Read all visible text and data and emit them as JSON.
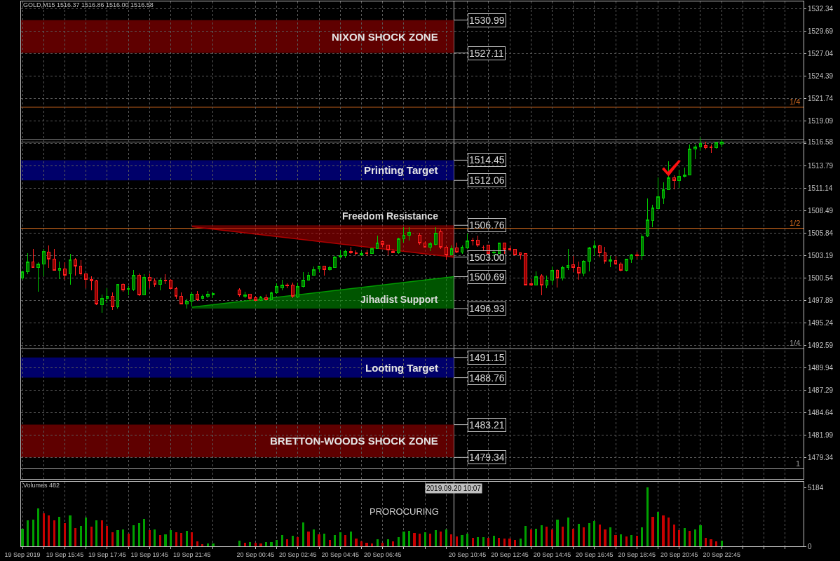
{
  "chart_data": [
    {
      "type": "candlestick",
      "title": "GOLD,M15 1516.37 1516.86 1516.00 1516.58",
      "x": [
        "2019-09-19T13:45",
        "2019-09-19T14:00",
        "2019-09-19T14:15",
        "2019-09-19T14:30",
        "2019-09-19T14:45",
        "2019-09-19T15:00",
        "2019-09-19T15:15",
        "2019-09-19T15:30",
        "2019-09-19T15:45",
        "2019-09-19T16:00",
        "2019-09-19T16:15",
        "2019-09-19T16:30",
        "2019-09-19T16:45",
        "2019-09-19T17:00",
        "2019-09-19T17:15",
        "2019-09-19T17:30",
        "2019-09-19T17:45",
        "2019-09-19T18:00",
        "2019-09-19T18:15",
        "2019-09-19T18:30",
        "2019-09-19T18:45",
        "2019-09-19T19:00",
        "2019-09-19T19:15",
        "2019-09-19T19:30",
        "2019-09-19T19:45",
        "2019-09-19T20:00",
        "2019-09-19T20:15",
        "2019-09-19T20:30",
        "2019-09-19T20:45",
        "2019-09-19T21:00",
        "2019-09-19T21:15",
        "2019-09-19T21:30",
        "2019-09-19T21:45",
        "2019-09-19T22:00",
        "2019-09-19T22:15",
        "2019-09-19T22:30",
        "2019-09-19T22:45",
        "2019-09-20T00:00",
        "2019-09-20T00:15",
        "2019-09-20T00:30",
        "2019-09-20T00:45",
        "2019-09-20T01:00",
        "2019-09-20T01:15",
        "2019-09-20T01:30",
        "2019-09-20T01:45",
        "2019-09-20T02:00",
        "2019-09-20T02:15",
        "2019-09-20T02:30",
        "2019-09-20T02:45",
        "2019-09-20T03:00",
        "2019-09-20T03:15",
        "2019-09-20T03:30",
        "2019-09-20T03:45",
        "2019-09-20T04:00",
        "2019-09-20T04:15",
        "2019-09-20T04:30",
        "2019-09-20T04:45",
        "2019-09-20T05:00",
        "2019-09-20T05:15",
        "2019-09-20T05:30",
        "2019-09-20T05:45",
        "2019-09-20T06:00",
        "2019-09-20T06:15",
        "2019-09-20T06:30",
        "2019-09-20T06:45",
        "2019-09-20T07:00",
        "2019-09-20T07:15",
        "2019-09-20T07:30",
        "2019-09-20T07:45",
        "2019-09-20T08:00",
        "2019-09-20T08:30",
        "2019-09-20T08:45",
        "2019-09-20T09:00",
        "2019-09-20T09:15",
        "2019-09-20T09:30",
        "2019-09-20T09:45",
        "2019-09-20T10:00",
        "2019-09-20T10:15",
        "2019-09-20T10:30",
        "2019-09-20T10:45",
        "2019-09-20T11:00",
        "2019-09-20T11:15",
        "2019-09-20T11:30",
        "2019-09-20T11:45",
        "2019-09-20T12:00",
        "2019-09-20T12:15",
        "2019-09-20T12:30",
        "2019-09-20T12:45",
        "2019-09-20T13:00",
        "2019-09-20T13:15",
        "2019-09-20T13:30",
        "2019-09-20T13:45",
        "2019-09-20T14:00",
        "2019-09-20T14:15",
        "2019-09-20T14:30",
        "2019-09-20T14:45",
        "2019-09-20T15:00",
        "2019-09-20T15:15",
        "2019-09-20T15:30",
        "2019-09-20T15:45",
        "2019-09-20T16:00",
        "2019-09-20T16:15",
        "2019-09-20T16:30",
        "2019-09-20T16:45",
        "2019-09-20T17:00",
        "2019-09-20T17:15",
        "2019-09-20T17:30",
        "2019-09-20T17:45",
        "2019-09-20T18:00",
        "2019-09-20T18:15",
        "2019-09-20T18:30",
        "2019-09-20T18:45",
        "2019-09-20T19:00",
        "2019-09-20T19:15",
        "2019-09-20T19:30",
        "2019-09-20T19:45",
        "2019-09-20T20:00",
        "2019-09-20T20:15",
        "2019-09-20T20:30",
        "2019-09-20T20:45",
        "2019-09-20T21:00",
        "2019-09-20T21:15",
        "2019-09-20T21:30",
        "2019-09-20T21:45",
        "2019-09-20T22:00",
        "2019-09-20T22:15",
        "2019-09-20T22:30",
        "2019-09-20T22:45"
      ],
      "ohlc": [
        [
          1500.5,
          1501.4,
          1500.3,
          1501.3
        ],
        [
          1501.3,
          1503.5,
          1501.0,
          1502.4
        ],
        [
          1502.4,
          1504.0,
          1501.7,
          1501.8
        ],
        [
          1501.8,
          1502.4,
          1498.9,
          1502.2
        ],
        [
          1502.2,
          1504.0,
          1500.7,
          1503.7
        ],
        [
          1503.6,
          1504.4,
          1501.7,
          1502.8
        ],
        [
          1502.8,
          1504.0,
          1501.4,
          1501.4
        ],
        [
          1501.4,
          1502.5,
          1500.4,
          1501.7
        ],
        [
          1501.6,
          1502.4,
          1500.3,
          1500.9
        ],
        [
          1501.0,
          1503.4,
          1499.7,
          1502.7
        ],
        [
          1502.7,
          1502.9,
          1500.8,
          1501.9
        ],
        [
          1501.9,
          1502.6,
          1500.8,
          1501.0
        ],
        [
          1501.0,
          1501.0,
          1499.3,
          1500.4
        ],
        [
          1500.4,
          1500.7,
          1499.1,
          1500.2
        ],
        [
          1500.2,
          1500.3,
          1497.3,
          1497.5
        ],
        [
          1497.4,
          1498.6,
          1496.4,
          1498.1
        ],
        [
          1498.1,
          1499.3,
          1497.6,
          1498.4
        ],
        [
          1498.4,
          1498.8,
          1496.8,
          1497.1
        ],
        [
          1497.1,
          1499.8,
          1496.9,
          1499.8
        ],
        [
          1499.8,
          1499.9,
          1498.9,
          1499.1
        ],
        [
          1499.2,
          1499.6,
          1498.5,
          1499.3
        ],
        [
          1499.2,
          1501.5,
          1499.0,
          1500.9
        ],
        [
          1500.9,
          1501.1,
          1498.4,
          1498.5
        ],
        [
          1498.5,
          1501.0,
          1498.5,
          1500.6
        ],
        [
          1500.6,
          1501.1,
          1499.3,
          1500.2
        ],
        [
          1500.2,
          1500.5,
          1499.5,
          1499.8
        ],
        [
          1499.8,
          1500.5,
          1499.1,
          1500.3
        ],
        [
          1500.3,
          1501.0,
          1499.8,
          1500.2
        ],
        [
          1500.3,
          1500.4,
          1499.2,
          1499.3
        ],
        [
          1499.3,
          1499.5,
          1498.1,
          1498.4
        ],
        [
          1498.4,
          1498.8,
          1497.4,
          1497.5
        ],
        [
          1497.5,
          1498.1,
          1496.9,
          1497.8
        ],
        [
          1497.8,
          1498.9,
          1497.2,
          1498.6
        ],
        [
          1498.6,
          1499.0,
          1497.8,
          1498.0
        ],
        [
          1498.1,
          1498.6,
          1498.0,
          1498.4
        ],
        [
          1498.4,
          1499.0,
          1498.2,
          1498.6
        ],
        [
          1498.5,
          1498.9,
          1498.2,
          1498.7
        ],
        [
          1499.1,
          1499.3,
          1498.3,
          1498.5
        ],
        [
          1498.4,
          1498.9,
          1498.2,
          1498.5
        ],
        [
          1498.6,
          1498.7,
          1497.8,
          1498.1
        ],
        [
          1498.2,
          1498.4,
          1497.8,
          1497.9
        ],
        [
          1497.9,
          1498.4,
          1497.9,
          1498.3
        ],
        [
          1498.2,
          1498.6,
          1497.9,
          1498.0
        ],
        [
          1498.0,
          1498.9,
          1497.9,
          1498.8
        ],
        [
          1498.8,
          1499.9,
          1498.7,
          1499.5
        ],
        [
          1499.4,
          1500.3,
          1499.1,
          1499.7
        ],
        [
          1499.7,
          1499.9,
          1499.3,
          1499.6
        ],
        [
          1499.7,
          1500.0,
          1498.2,
          1498.4
        ],
        [
          1498.3,
          1500.0,
          1498.2,
          1499.5
        ],
        [
          1499.5,
          1501.2,
          1499.4,
          1500.3
        ],
        [
          1500.3,
          1501.2,
          1500.2,
          1500.9
        ],
        [
          1500.9,
          1501.9,
          1500.8,
          1501.5
        ],
        [
          1501.6,
          1502.0,
          1501.2,
          1501.9
        ],
        [
          1501.9,
          1501.9,
          1500.8,
          1501.5
        ],
        [
          1501.5,
          1502.0,
          1501.4,
          1501.8
        ],
        [
          1501.8,
          1503.1,
          1501.7,
          1503.0
        ],
        [
          1503.0,
          1503.8,
          1502.9,
          1503.2
        ],
        [
          1503.2,
          1503.9,
          1502.9,
          1503.7
        ],
        [
          1503.7,
          1504.2,
          1503.4,
          1503.5
        ],
        [
          1503.5,
          1503.8,
          1503.2,
          1503.4
        ],
        [
          1503.3,
          1503.7,
          1503.1,
          1503.4
        ],
        [
          1503.5,
          1503.9,
          1503.1,
          1503.4
        ],
        [
          1503.4,
          1504.1,
          1503.4,
          1504.0
        ],
        [
          1504.0,
          1505.5,
          1504.0,
          1504.7
        ],
        [
          1504.8,
          1505.0,
          1504.2,
          1504.5
        ],
        [
          1504.4,
          1504.5,
          1503.2,
          1503.8
        ],
        [
          1503.7,
          1504.0,
          1503.5,
          1503.5
        ],
        [
          1503.5,
          1505.3,
          1503.4,
          1505.2
        ],
        [
          1505.2,
          1506.5,
          1504.7,
          1505.6
        ],
        [
          1505.6,
          1506.5,
          1505.0,
          1505.9
        ],
        [
          1505.6,
          1505.9,
          1504.5,
          1504.7
        ],
        [
          1504.7,
          1504.9,
          1504.1,
          1504.2
        ],
        [
          1504.2,
          1504.8,
          1503.7,
          1504.6
        ],
        [
          1504.5,
          1506.5,
          1504.4,
          1505.8
        ],
        [
          1506.0,
          1506.3,
          1504.0,
          1504.2
        ],
        [
          1504.2,
          1504.4,
          1502.7,
          1503.3
        ],
        [
          1503.3,
          1504.4,
          1503.2,
          1504.0
        ],
        [
          1504.1,
          1504.7,
          1503.5,
          1503.6
        ],
        [
          1503.6,
          1504.4,
          1503.4,
          1504.2
        ],
        [
          1504.1,
          1505.8,
          1504.0,
          1504.9
        ],
        [
          1505.0,
          1505.3,
          1504.4,
          1504.9
        ],
        [
          1505.0,
          1505.5,
          1504.2,
          1504.4
        ],
        [
          1504.2,
          1504.4,
          1503.7,
          1504.2
        ],
        [
          1504.4,
          1504.4,
          1503.4,
          1503.4
        ],
        [
          1503.5,
          1503.9,
          1503.1,
          1503.6
        ],
        [
          1503.4,
          1504.7,
          1503.4,
          1504.7
        ],
        [
          1504.7,
          1504.7,
          1503.4,
          1503.9
        ],
        [
          1504.0,
          1504.4,
          1503.7,
          1503.8
        ],
        [
          1503.9,
          1504.0,
          1503.3,
          1503.3
        ],
        [
          1503.5,
          1503.5,
          1502.7,
          1503.3
        ],
        [
          1503.4,
          1503.4,
          1499.7,
          1499.7
        ],
        [
          1499.9,
          1500.4,
          1499.6,
          1499.7
        ],
        [
          1499.7,
          1501.3,
          1499.7,
          1500.7
        ],
        [
          1500.8,
          1501.0,
          1498.5,
          1499.7
        ],
        [
          1499.7,
          1500.8,
          1499.3,
          1500.3
        ],
        [
          1500.3,
          1501.9,
          1499.7,
          1501.4
        ],
        [
          1501.4,
          1501.6,
          1499.4,
          1500.5
        ],
        [
          1500.5,
          1502.0,
          1500.2,
          1501.8
        ],
        [
          1501.8,
          1504.0,
          1501.5,
          1502.0
        ],
        [
          1502.1,
          1503.1,
          1501.2,
          1501.8
        ],
        [
          1501.8,
          1502.5,
          1500.3,
          1501.1
        ],
        [
          1501.1,
          1502.6,
          1500.7,
          1502.5
        ],
        [
          1502.5,
          1504.2,
          1501.3,
          1504.1
        ],
        [
          1504.1,
          1505.0,
          1503.1,
          1504.3
        ],
        [
          1504.3,
          1504.5,
          1503.0,
          1503.5
        ],
        [
          1503.5,
          1504.2,
          1502.2,
          1502.5
        ],
        [
          1502.5,
          1503.1,
          1501.8,
          1502.7
        ],
        [
          1502.6,
          1503.1,
          1502.1,
          1502.2
        ],
        [
          1502.2,
          1502.4,
          1501.3,
          1501.4
        ],
        [
          1501.4,
          1502.8,
          1501.3,
          1502.8
        ],
        [
          1502.8,
          1503.4,
          1502.3,
          1503.3
        ],
        [
          1503.3,
          1503.6,
          1502.7,
          1503.2
        ],
        [
          1503.2,
          1505.7,
          1502.6,
          1505.4
        ],
        [
          1505.5,
          1509.9,
          1505.4,
          1507.4
        ],
        [
          1507.3,
          1509.2,
          1506.5,
          1508.8
        ],
        [
          1508.7,
          1512.4,
          1508.7,
          1510.1
        ],
        [
          1510.0,
          1511.8,
          1509.3,
          1511.0
        ],
        [
          1511.0,
          1514.3,
          1510.9,
          1512.4
        ],
        [
          1512.4,
          1512.7,
          1511.0,
          1512.0
        ],
        [
          1512.0,
          1513.3,
          1511.2,
          1512.5
        ],
        [
          1512.5,
          1513.6,
          1512.4,
          1512.7
        ],
        [
          1512.7,
          1516.3,
          1512.7,
          1515.8
        ],
        [
          1515.8,
          1516.3,
          1514.6,
          1516.0
        ],
        [
          1516.0,
          1517.1,
          1515.6,
          1516.4
        ],
        [
          1516.2,
          1516.6,
          1515.7,
          1515.9
        ],
        [
          1516.0,
          1516.3,
          1515.3,
          1515.9
        ],
        [
          1515.9,
          1516.6,
          1515.8,
          1516.5
        ],
        [
          1516.37,
          1516.86,
          1516.0,
          1516.58
        ]
      ],
      "series": [
        {
          "type": "line",
          "name": "Freedom Resistance",
          "color": "#b00000",
          "x": [
            "2019-09-19T21:45",
            "2019-09-20T10:07"
          ],
          "values": [
            1506.6,
            1503.0
          ],
          "lower": [
            1506.6,
            1503.0
          ],
          "upper": [
            1506.76,
            1506.76
          ]
        },
        {
          "type": "line",
          "name": "Jihadist Support",
          "color": "#009a00",
          "x": [
            "2019-09-19T21:45",
            "2019-09-20T10:07"
          ],
          "values": [
            1497.1,
            1500.69
          ],
          "lower": [
            1496.93,
            1496.93
          ],
          "upper": [
            1497.1,
            1500.69
          ]
        }
      ],
      "xlim": [
        "2019-09-19T13:41",
        "2019-09-21T02:37"
      ],
      "ylim": [
        1476.8,
        1533.2
      ],
      "xticks": [
        {
          "value": "2019-09-19T13:45",
          "label": null
        },
        {
          "value": "2019-09-19T14:45",
          "label": null
        },
        {
          "value": "2019-09-19T15:45",
          "label": null
        },
        {
          "value": "2019-09-19T16:45",
          "label": null
        },
        {
          "value": "2019-09-19T17:45",
          "label": null
        },
        {
          "value": "2019-09-19T18:45",
          "label": null
        },
        {
          "value": "2019-09-19T19:45",
          "label": null
        },
        {
          "value": "2019-09-19T20:45",
          "label": null
        },
        {
          "value": "2019-09-19T21:45",
          "label": null
        },
        {
          "value": "2019-09-19T22:45",
          "label": null
        },
        {
          "value": "2019-09-20T00:45",
          "label": null
        },
        {
          "value": "2019-09-20T01:45",
          "label": null
        },
        {
          "value": "2019-09-20T02:45",
          "label": null
        },
        {
          "value": "2019-09-20T03:45",
          "label": null
        },
        {
          "value": "2019-09-20T04:45",
          "label": null
        },
        {
          "value": "2019-09-20T05:45",
          "label": null
        },
        {
          "value": "2019-09-20T06:45",
          "label": null
        },
        {
          "value": "2019-09-20T07:45",
          "label": null
        },
        {
          "value": "2019-09-20T08:45",
          "label": null
        },
        {
          "value": "2019-09-20T09:45",
          "label": null
        },
        {
          "value": "2019-09-20T10:45",
          "label": null
        },
        {
          "value": "2019-09-20T11:45",
          "label": null
        },
        {
          "value": "2019-09-20T12:45",
          "label": null
        },
        {
          "value": "2019-09-20T13:45",
          "label": null
        },
        {
          "value": "2019-09-20T14:45",
          "label": null
        },
        {
          "value": "2019-09-20T15:45",
          "label": null
        },
        {
          "value": "2019-09-20T16:45",
          "label": null
        },
        {
          "value": "2019-09-20T17:45",
          "label": null
        },
        {
          "value": "2019-09-20T18:45",
          "label": null
        },
        {
          "value": "2019-09-20T19:45",
          "label": null
        },
        {
          "value": "2019-09-20T20:45",
          "label": null
        },
        {
          "value": "2019-09-20T21:45",
          "label": null
        },
        {
          "value": "2019-09-20T22:45",
          "label": null
        },
        {
          "value": "2019-09-20T23:45",
          "label": null
        },
        {
          "value": "2019-09-21T00:45",
          "label": null
        },
        {
          "value": "2019-09-21T01:45",
          "label": null
        }
      ],
      "yticks": [
        1532.34,
        1529.69,
        1527.04,
        1524.39,
        1521.74,
        1519.09,
        1516.58,
        {
          "value": 1516.44,
          "label": null
        },
        1513.79,
        1511.14,
        1508.49,
        1505.84,
        1503.19,
        1500.54,
        1497.89,
        1495.24,
        1492.59,
        1489.94,
        1487.29,
        1484.64,
        1481.99,
        1479.34
      ],
      "tick_labels": "y",
      "grid": true,
      "bands": [
        {
          "axis": "y",
          "from": 1527.11,
          "to": 1530.99,
          "label": "NIXON SHOCK ZONE",
          "color": "#5f0000"
        },
        {
          "axis": "y",
          "from": 1512.06,
          "to": 1514.45,
          "label": "Printing Target",
          "color": "#00006a"
        },
        {
          "axis": "y",
          "from": 1488.76,
          "to": 1491.15,
          "label": "Looting Target",
          "color": "#00006a"
        },
        {
          "axis": "y",
          "from": 1479.34,
          "to": 1483.21,
          "label": "BRETTON-WOODS SHOCK ZONE",
          "color": "#5f0000"
        }
      ],
      "ref_lines": [
        {
          "axis": "x",
          "value": "2019-09-20T10:07",
          "color": "#c0c0c0"
        },
        {
          "axis": "y",
          "value": 1520.7,
          "color": "#d2691e"
        },
        {
          "axis": "y",
          "value": 1516.9,
          "color": "#909090"
        },
        {
          "axis": "y",
          "value": 1516.58,
          "color": "#909090"
        },
        {
          "axis": "y",
          "value": 1506.4,
          "color": "#d2691e"
        },
        {
          "axis": "y",
          "value": 1492.2,
          "color": "#a0a0a0"
        },
        {
          "axis": "y",
          "value": 1478.0,
          "color": "#a0a0a0"
        }
      ],
      "annotations": [
        {
          "text": "1530.99",
          "x": "2019-09-20T10:07",
          "y": 1530.99
        },
        {
          "text": "1527.11",
          "x": "2019-09-20T10:07",
          "y": 1527.11
        },
        {
          "text": "1514.45",
          "x": "2019-09-20T10:07",
          "y": 1514.45
        },
        {
          "text": "1512.06",
          "x": "2019-09-20T10:07",
          "y": 1512.06
        },
        {
          "text": "1506.76",
          "x": "2019-09-20T10:07",
          "y": 1506.76
        },
        {
          "text": "1503.00",
          "x": "2019-09-20T10:07",
          "y": 1503.0
        },
        {
          "text": "1500.69",
          "x": "2019-09-20T10:07",
          "y": 1500.69
        },
        {
          "text": "1496.93",
          "x": "2019-09-20T10:07",
          "y": 1496.93
        },
        {
          "text": "1491.15",
          "x": "2019-09-20T10:07",
          "y": 1491.15
        },
        {
          "text": "1488.76",
          "x": "2019-09-20T10:07",
          "y": 1488.76
        },
        {
          "text": "1483.21",
          "x": "2019-09-20T10:07",
          "y": 1483.21
        },
        {
          "text": "1479.34",
          "x": "2019-09-20T10:07",
          "y": 1479.34
        },
        {
          "text": "1/4",
          "x": "2019-09-21T02:37",
          "y": 1520.7
        },
        {
          "text": "1/2",
          "x": "2019-09-21T02:37",
          "y": 1506.4
        },
        {
          "text": "1/4",
          "x": "2019-09-21T02:37",
          "y": 1492.2
        },
        {
          "text": "1",
          "x": "2019-09-21T02:37",
          "y": 1478.0
        }
      ]
    },
    {
      "type": "bar",
      "title": "Volumes 482",
      "x": [
        "2019-09-19T13:45",
        "2019-09-19T14:00",
        "2019-09-19T14:15",
        "2019-09-19T14:30",
        "2019-09-19T14:45",
        "2019-09-19T15:00",
        "2019-09-19T15:15",
        "2019-09-19T15:30",
        "2019-09-19T15:45",
        "2019-09-19T16:00",
        "2019-09-19T16:15",
        "2019-09-19T16:30",
        "2019-09-19T16:45",
        "2019-09-19T17:00",
        "2019-09-19T17:15",
        "2019-09-19T17:30",
        "2019-09-19T17:45",
        "2019-09-19T18:00",
        "2019-09-19T18:15",
        "2019-09-19T18:30",
        "2019-09-19T18:45",
        "2019-09-19T19:00",
        "2019-09-19T19:15",
        "2019-09-19T19:30",
        "2019-09-19T19:45",
        "2019-09-19T20:00",
        "2019-09-19T20:15",
        "2019-09-19T20:30",
        "2019-09-19T20:45",
        "2019-09-19T21:00",
        "2019-09-19T21:15",
        "2019-09-19T21:30",
        "2019-09-19T21:45",
        "2019-09-19T22:00",
        "2019-09-19T22:15",
        "2019-09-19T22:30",
        "2019-09-19T22:45",
        "2019-09-20T00:00",
        "2019-09-20T00:15",
        "2019-09-20T00:30",
        "2019-09-20T00:45",
        "2019-09-20T01:00",
        "2019-09-20T01:15",
        "2019-09-20T01:30",
        "2019-09-20T01:45",
        "2019-09-20T02:00",
        "2019-09-20T02:15",
        "2019-09-20T02:30",
        "2019-09-20T02:45",
        "2019-09-20T03:00",
        "2019-09-20T03:15",
        "2019-09-20T03:30",
        "2019-09-20T03:45",
        "2019-09-20T04:00",
        "2019-09-20T04:15",
        "2019-09-20T04:30",
        "2019-09-20T04:45",
        "2019-09-20T05:00",
        "2019-09-20T05:15",
        "2019-09-20T05:30",
        "2019-09-20T05:45",
        "2019-09-20T06:00",
        "2019-09-20T06:15",
        "2019-09-20T06:30",
        "2019-09-20T06:45",
        "2019-09-20T07:00",
        "2019-09-20T07:15",
        "2019-09-20T07:30",
        "2019-09-20T07:45",
        "2019-09-20T08:00",
        "2019-09-20T08:15",
        "2019-09-20T08:30",
        "2019-09-20T08:45",
        "2019-09-20T09:00",
        "2019-09-20T09:15",
        "2019-09-20T09:30",
        "2019-09-20T09:45",
        "2019-09-20T10:00",
        "2019-09-20T10:15",
        "2019-09-20T10:30",
        "2019-09-20T10:45",
        "2019-09-20T11:00",
        "2019-09-20T11:15",
        "2019-09-20T11:30",
        "2019-09-20T11:45",
        "2019-09-20T12:00",
        "2019-09-20T12:15",
        "2019-09-20T12:30",
        "2019-09-20T12:45",
        "2019-09-20T13:00",
        "2019-09-20T13:15",
        "2019-09-20T13:30",
        "2019-09-20T13:45",
        "2019-09-20T14:00",
        "2019-09-20T14:15",
        "2019-09-20T14:30",
        "2019-09-20T14:45",
        "2019-09-20T15:00",
        "2019-09-20T15:15",
        "2019-09-20T15:30",
        "2019-09-20T15:45",
        "2019-09-20T16:00",
        "2019-09-20T16:15",
        "2019-09-20T16:30",
        "2019-09-20T16:45",
        "2019-09-20T17:00",
        "2019-09-20T17:15",
        "2019-09-20T17:30",
        "2019-09-20T17:45",
        "2019-09-20T18:00",
        "2019-09-20T18:15",
        "2019-09-20T18:30",
        "2019-09-20T18:45",
        "2019-09-20T19:00",
        "2019-09-20T19:15",
        "2019-09-20T19:30",
        "2019-09-20T19:45",
        "2019-09-20T20:00",
        "2019-09-20T20:15",
        "2019-09-20T20:30",
        "2019-09-20T20:45",
        "2019-09-20T21:00",
        "2019-09-20T21:15",
        "2019-09-20T21:30",
        "2019-09-20T21:45",
        "2019-09-20T22:00",
        "2019-09-20T22:15",
        "2019-09-20T22:30",
        "2019-09-20T22:45"
      ],
      "values": [
        1540,
        2290,
        2360,
        3330,
        2890,
        2700,
        2270,
        2630,
        2050,
        2750,
        1610,
        1810,
        2510,
        1740,
        2310,
        2270,
        1810,
        1250,
        1420,
        1490,
        1130,
        1880,
        2070,
        2430,
        1450,
        1490,
        990,
        1060,
        1450,
        1250,
        1180,
        1370,
        1250,
        410,
        170,
        240,
        270,
        480,
        290,
        360,
        290,
        270,
        360,
        390,
        550,
        990,
        630,
        920,
        820,
        2120,
        1330,
        1490,
        1060,
        1110,
        580,
        990,
        1250,
        1010,
        1330,
        700,
        460,
        310,
        240,
        630,
        310,
        630,
        430,
        820,
        1330,
        1370,
        1180,
        1130,
        1210,
        1130,
        1400,
        1300,
        1490,
        1060,
        870,
        990,
        1110,
        750,
        800,
        820,
        750,
        920,
        750,
        700,
        670,
        580,
        700,
        1810,
        1490,
        1540,
        1860,
        1740,
        1490,
        2360,
        1740,
        2550,
        1540,
        1980,
        1690,
        2050,
        2240,
        1930,
        1490,
        1690,
        990,
        1060,
        870,
        990,
        920,
        1690,
        5184,
        2600,
        3040,
        2750,
        2550,
        1930,
        1450,
        1610,
        1370,
        1490,
        1880,
        750,
        630,
        430,
        482
      ],
      "colors": [
        "#00a000",
        "#00a000",
        "#00a000",
        "#00a000",
        "#c80000",
        "#c80000",
        "#c80000",
        "#00a000",
        "#c80000",
        "#00a000",
        "#c80000",
        "#00a000",
        "#00a000",
        "#c80000",
        "#00a000",
        "#c80000",
        "#c80000",
        "#c80000",
        "#00a000",
        "#00a000",
        "#c80000",
        "#00a000",
        "#00a000",
        "#00a000",
        "#c80000",
        "#00a000",
        "#c80000",
        "#00a000",
        "#00a000",
        "#c80000",
        "#c80000",
        "#00a000",
        "#c80000",
        "#c80000",
        "#c80000",
        "#00a000",
        "#00a000",
        "#00a000",
        "#c80000",
        "#00a000",
        "#c80000",
        "#c80000",
        "#00a000",
        "#00a000",
        "#00a000",
        "#00a000",
        "#c80000",
        "#00a000",
        "#c80000",
        "#00a000",
        "#c80000",
        "#00a000",
        "#c80000",
        "#00a000",
        "#c80000",
        "#00a000",
        "#00a000",
        "#c80000",
        "#00a000",
        "#c80000",
        "#c80000",
        "#c80000",
        "#c80000",
        "#00a000",
        "#c80000",
        "#00a000",
        "#c80000",
        "#00a000",
        "#00a000",
        "#00a000",
        "#c80000",
        "#c80000",
        "#00a000",
        "#c80000",
        "#00a000",
        "#c80000",
        "#00a000",
        "#c80000",
        "#c80000",
        "#00a000",
        "#00a000",
        "#c80000",
        "#00a000",
        "#00a000",
        "#c80000",
        "#00a000",
        "#c80000",
        "#c80000",
        "#c80000",
        "#c80000",
        "#00a000",
        "#00a000",
        "#c80000",
        "#00a000",
        "#00a000",
        "#c80000",
        "#c80000",
        "#00a000",
        "#c80000",
        "#00a000",
        "#c80000",
        "#00a000",
        "#c80000",
        "#00a000",
        "#00a000",
        "#c80000",
        "#c80000",
        "#00a000",
        "#c80000",
        "#00a000",
        "#c80000",
        "#00a000",
        "#c80000",
        "#00a000",
        "#00a000",
        "#c80000",
        "#00a000",
        "#c80000",
        "#c80000",
        "#c80000",
        "#c80000",
        "#00a000",
        "#c80000",
        "#00a000",
        "#00a000",
        "#c80000",
        "#c80000",
        "#c80000",
        "#00a000"
      ],
      "xlim": [
        "2019-09-19T13:41",
        "2019-09-21T02:37"
      ],
      "ylim": [
        0,
        5700
      ],
      "xticks": [
        {
          "value": "2019-09-19T13:45",
          "label": "19 Sep 2019"
        },
        {
          "value": "2019-09-19T14:45",
          "label": null
        },
        {
          "value": "2019-09-19T15:45",
          "label": "19 Sep 15:45"
        },
        {
          "value": "2019-09-19T16:45",
          "label": null
        },
        {
          "value": "2019-09-19T17:45",
          "label": "19 Sep 17:45"
        },
        {
          "value": "2019-09-19T18:45",
          "label": null
        },
        {
          "value": "2019-09-19T19:45",
          "label": "19 Sep 19:45"
        },
        {
          "value": "2019-09-19T20:45",
          "label": null
        },
        {
          "value": "2019-09-19T21:45",
          "label": "19 Sep 21:45"
        },
        {
          "value": "2019-09-19T22:45",
          "label": null
        },
        {
          "value": "2019-09-20T00:45",
          "label": "20 Sep 00:45"
        },
        {
          "value": "2019-09-20T01:45",
          "label": null
        },
        {
          "value": "2019-09-20T02:45",
          "label": "20 Sep 02:45"
        },
        {
          "value": "2019-09-20T03:45",
          "label": null
        },
        {
          "value": "2019-09-20T04:45",
          "label": "20 Sep 04:45"
        },
        {
          "value": "2019-09-20T05:45",
          "label": null
        },
        {
          "value": "2019-09-20T06:45",
          "label": "20 Sep 06:45"
        },
        {
          "value": "2019-09-20T07:45",
          "label": null
        },
        {
          "value": "2019-09-20T08:45",
          "label": null
        },
        {
          "value": "2019-09-20T09:45",
          "label": null
        },
        {
          "value": "2019-09-20T10:45",
          "label": "20 Sep 10:45"
        },
        {
          "value": "2019-09-20T11:45",
          "label": null
        },
        {
          "value": "2019-09-20T12:45",
          "label": "20 Sep 12:45"
        },
        {
          "value": "2019-09-20T13:45",
          "label": null
        },
        {
          "value": "2019-09-20T14:45",
          "label": "20 Sep 14:45"
        },
        {
          "value": "2019-09-20T15:45",
          "label": null
        },
        {
          "value": "2019-09-20T16:45",
          "label": "20 Sep 16:45"
        },
        {
          "value": "2019-09-20T17:45",
          "label": null
        },
        {
          "value": "2019-09-20T18:45",
          "label": "20 Sep 18:45"
        },
        {
          "value": "2019-09-20T19:45",
          "label": null
        },
        {
          "value": "2019-09-20T20:45",
          "label": "20 Sep 20:45"
        },
        {
          "value": "2019-09-20T21:45",
          "label": null
        },
        {
          "value": "2019-09-20T22:45",
          "label": "20 Sep 22:45"
        },
        {
          "value": "2019-09-20T23:45",
          "label": null
        },
        {
          "value": "2019-09-21T00:45",
          "label": null
        },
        {
          "value": "2019-09-21T01:45",
          "label": null
        }
      ],
      "yticks": [
        0,
        5184
      ],
      "grid": "x",
      "ref_lines": [
        {
          "axis": "x",
          "value": "2019-09-20T10:07",
          "label": "2019.09.20 10:07",
          "color": "#c0c0c0"
        }
      ],
      "annotations": [
        "PROROCURING"
      ]
    }
  ]
}
